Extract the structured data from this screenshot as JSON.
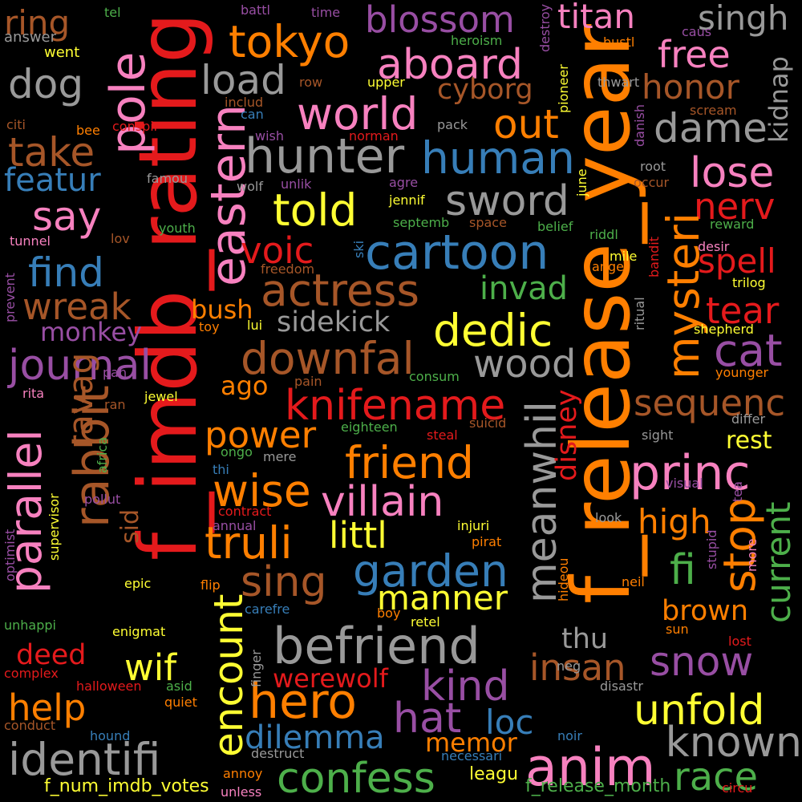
{
  "colors": {
    "red": "#e41a1c",
    "orange": "#ff7f00",
    "pink": "#f781bf",
    "purple": "#984ea3",
    "blue": "#377eb8",
    "gray": "#999999",
    "brown": "#a65628",
    "green": "#4daf4a",
    "yellow": "#ffff33"
  },
  "words": [
    "f_imdb_rating",
    "f_release_year",
    "tokyo",
    "blossom",
    "aboard",
    "titan",
    "free",
    "singh",
    "ring",
    "dog",
    "pole",
    "load",
    "world",
    "hunter",
    "human",
    "out",
    "honor",
    "dame",
    "take",
    "eastern",
    "featur",
    "say",
    "told",
    "sword",
    "cartoon",
    "find",
    "voic",
    "actress",
    "wreak",
    "journal",
    "monkey",
    "sidekick",
    "dedic",
    "wood",
    "cat",
    "downfal",
    "knifename",
    "sequenc",
    "power",
    "friend",
    "princ",
    "wise",
    "villain",
    "truli",
    "littl",
    "garden",
    "sing",
    "high",
    "manner",
    "befriend",
    "hero",
    "help",
    "confess",
    "anim",
    "identifi",
    "known",
    "unfold",
    "snow",
    "kind",
    "hat",
    "loc",
    "dilemma",
    "race",
    "werewolf",
    "insan",
    "stop",
    "parallel",
    "rabbit",
    "ravag",
    "encount",
    "wif",
    "deed",
    "meanwhil",
    "memor",
    "current",
    "brown",
    "thu",
    "fi",
    "nerv",
    "lose",
    "tear",
    "spell",
    "kidnap",
    "mysteri",
    "cyborg",
    "invad",
    "rest",
    "disney",
    "ago",
    "bush",
    "sid",
    "leagu",
    "f_num_imdb_votes",
    "f_release_month",
    "answer",
    "went",
    "tel",
    "battl",
    "time",
    "heroism",
    "destroy",
    "bustl",
    "caus",
    "citi",
    "bee",
    "conspir",
    "row",
    "includ",
    "can",
    "upper",
    "pioneer",
    "thwart",
    "scream",
    "wish",
    "norman",
    "pack",
    "danish",
    "famou",
    "wolf",
    "unlik",
    "agre",
    "jennif",
    "june",
    "root",
    "occur",
    "tunnel",
    "lov",
    "youth",
    "septemb",
    "space",
    "belief",
    "riddl",
    "reward",
    "desir",
    "ski",
    "freedom",
    "mile",
    "anger",
    "bandit",
    "prevent",
    "toy",
    "lui",
    "trilog",
    "ritual",
    "shepherd",
    "rita",
    "pan",
    "ran",
    "jewel",
    "pain",
    "consum",
    "younger",
    "eighteen",
    "suicid",
    "differ",
    "africa",
    "steal",
    "ongo",
    "mere",
    "sight",
    "thi",
    "pollut",
    "contract",
    "supervisor",
    "annual",
    "injuri",
    "look",
    "tea",
    "pirat",
    "optimist",
    "epic",
    "flip",
    "neil",
    "stupid",
    "more",
    "hideou",
    "visual",
    "unhappi",
    "enigmat",
    "carefre",
    "boy",
    "retel",
    "sun",
    "complex",
    "finger",
    "lost",
    "halloween",
    "asid",
    "quiet",
    "neg",
    "disastr",
    "conduct",
    "hound",
    "noir",
    "destruct",
    "necessari",
    "annoy",
    "unless",
    "circu"
  ]
}
